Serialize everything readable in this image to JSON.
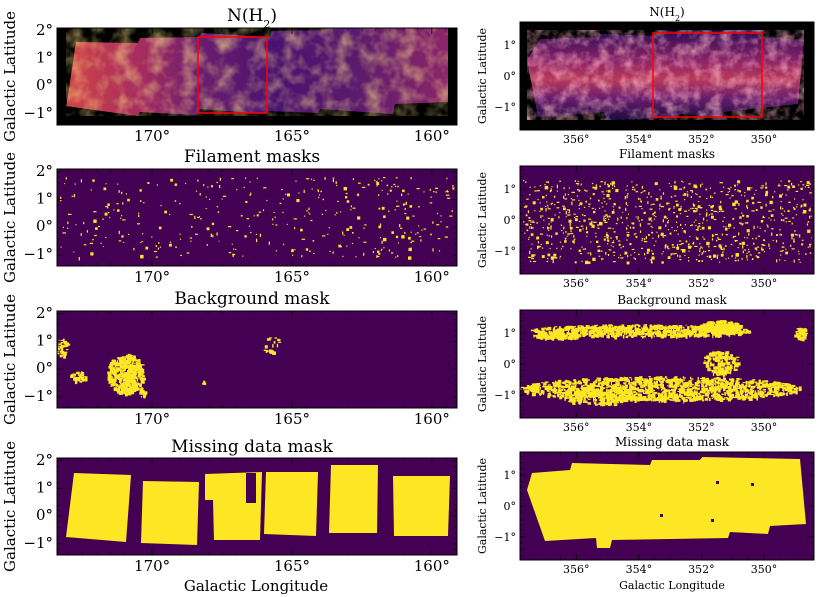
{
  "figure": {
    "left_column": {
      "xlabel": "Galactic Longitude",
      "ylabel": "Galactic Latitude",
      "x_ticks": [
        "170°",
        "165°",
        "160°"
      ],
      "x_tick_values": [
        170,
        165,
        160
      ],
      "xlim": [
        173.4,
        159.1
      ],
      "y_ticks": [
        "2°",
        "1°",
        "0°",
        "−1°"
      ],
      "y_tick_values": [
        2,
        1,
        0,
        -1
      ],
      "ylim": [
        -1.4,
        2.1
      ],
      "panels": [
        {
          "title": "N(H$_2$)",
          "title_main": "N(H",
          "title_sub": "2",
          "title_end": ")",
          "kind": "column-density",
          "region_box": {
            "x": [
              168.3,
              166.2
            ],
            "y": [
              -1.1,
              1.7
            ]
          }
        },
        {
          "title": "Filament masks",
          "kind": "filament-mask"
        },
        {
          "title": "Background mask",
          "kind": "background-mask"
        },
        {
          "title": "Missing data mask",
          "kind": "missing-mask"
        }
      ]
    },
    "right_column": {
      "xlabel": "Galactic Longitude",
      "ylabel": "Galactic Latitude",
      "x_ticks": [
        "356°",
        "354°",
        "352°",
        "350°"
      ],
      "x_tick_values": [
        356,
        354,
        352,
        350
      ],
      "xlim": [
        357.8,
        348.4
      ],
      "y_ticks": [
        "1°",
        "0°",
        "−1°"
      ],
      "y_tick_values": [
        1,
        0,
        -1
      ],
      "ylim": [
        -1.75,
        1.75
      ],
      "panels": [
        {
          "title": "N(H$_2$)",
          "title_main": "N(H",
          "title_sub": "2",
          "title_end": ")",
          "kind": "column-density",
          "region_box": {
            "x": [
              353.7,
              350.4
            ],
            "y": [
              -1.3,
              1.4
            ]
          }
        },
        {
          "title": "Filament masks",
          "kind": "filament-mask"
        },
        {
          "title": "Background mask",
          "kind": "background-mask"
        },
        {
          "title": "Missing data mask",
          "kind": "missing-mask"
        }
      ]
    },
    "colors": {
      "mask_background": "#440154",
      "mask_foreground": "#fde725",
      "outside": "#000000",
      "region_box": "#ff0000",
      "cmap": [
        "#000004",
        "#1b0c41",
        "#4a0c6b",
        "#781c6d",
        "#a52c60",
        "#cf4446",
        "#ed6925",
        "#fb9b06",
        "#f7d13d",
        "#fcffa4"
      ]
    }
  }
}
